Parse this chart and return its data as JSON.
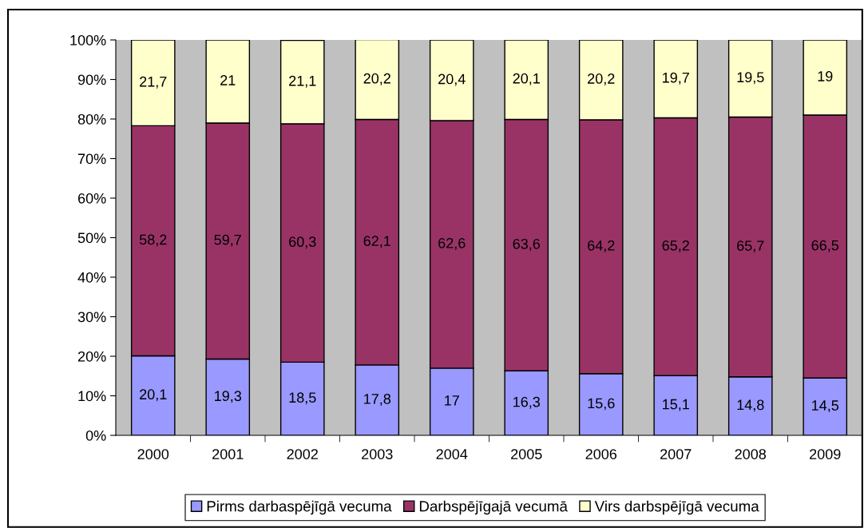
{
  "chart_data": {
    "type": "bar",
    "stacked": true,
    "categories": [
      "2000",
      "2001",
      "2002",
      "2003",
      "2004",
      "2005",
      "2006",
      "2007",
      "2008",
      "2009"
    ],
    "series": [
      {
        "name": "Pirms darbaspējīgā vecuma",
        "color": "#9999ff",
        "values": [
          20.1,
          19.3,
          18.5,
          17.8,
          17,
          16.3,
          15.6,
          15.1,
          14.8,
          14.5
        ],
        "value_labels": [
          "20,1",
          "19,3",
          "18,5",
          "17,8",
          "17",
          "16,3",
          "15,6",
          "15,1",
          "14,8",
          "14,5"
        ]
      },
      {
        "name": "Darbspējīgajā vecumā",
        "color": "#993366",
        "values": [
          58.2,
          59.7,
          60.3,
          62.1,
          62.6,
          63.6,
          64.2,
          65.2,
          65.7,
          66.5
        ],
        "value_labels": [
          "58,2",
          "59,7",
          "60,3",
          "62,1",
          "62,6",
          "63,6",
          "64,2",
          "65,2",
          "65,7",
          "66,5"
        ]
      },
      {
        "name": "Virs darbspējīgā vecuma",
        "color": "#ffffcc",
        "values": [
          21.7,
          21,
          21.1,
          20.2,
          20.4,
          20.1,
          20.2,
          19.7,
          19.5,
          19
        ],
        "value_labels": [
          "21,7",
          "21",
          "21,1",
          "20,2",
          "20,4",
          "20,1",
          "20,2",
          "19,7",
          "19,5",
          "19"
        ]
      }
    ],
    "ylim": [
      0,
      100
    ],
    "yticks": [
      {
        "value": 0,
        "label": "0%"
      },
      {
        "value": 10,
        "label": "10%"
      },
      {
        "value": 20,
        "label": "20%"
      },
      {
        "value": 30,
        "label": "30%"
      },
      {
        "value": 40,
        "label": "40%"
      },
      {
        "value": 50,
        "label": "50%"
      },
      {
        "value": 60,
        "label": "60%"
      },
      {
        "value": 70,
        "label": "70%"
      },
      {
        "value": 80,
        "label": "80%"
      },
      {
        "value": 90,
        "label": "90%"
      },
      {
        "value": 100,
        "label": "100%"
      }
    ],
    "grid": false,
    "legend": "bottom"
  }
}
